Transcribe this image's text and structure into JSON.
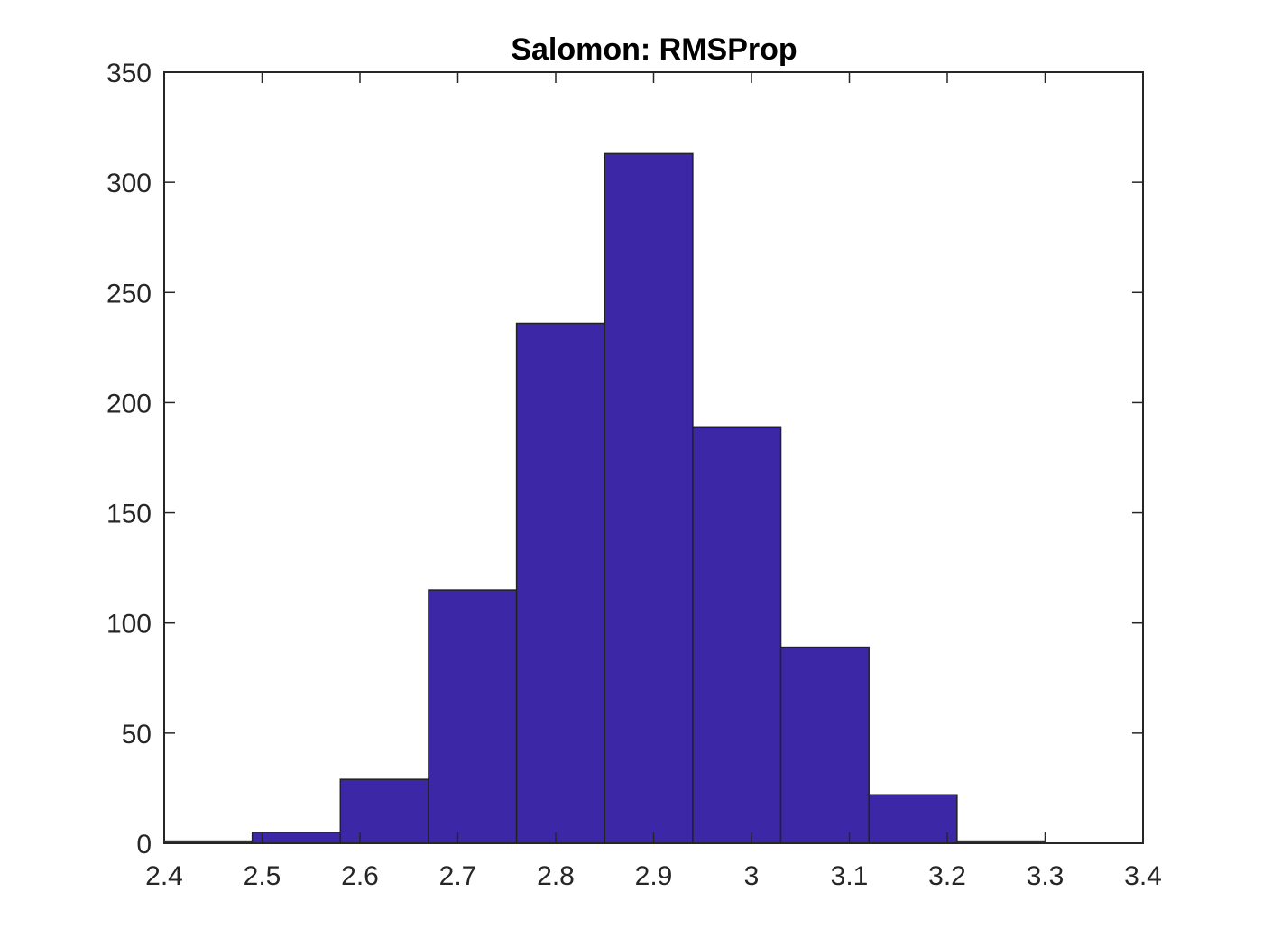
{
  "chart_data": {
    "type": "bar",
    "subtype": "histogram",
    "title": "Salomon: RMSProp",
    "xlabel": "",
    "ylabel": "",
    "xlim": [
      2.4,
      3.4
    ],
    "ylim": [
      0,
      350
    ],
    "x_ticks": [
      2.4,
      2.5,
      2.6,
      2.7,
      2.8,
      2.9,
      3.0,
      3.1,
      3.2,
      3.3,
      3.4
    ],
    "x_tick_labels": [
      "2.4",
      "2.5",
      "2.6",
      "2.7",
      "2.8",
      "2.9",
      "3",
      "3.1",
      "3.2",
      "3.3",
      "3.4"
    ],
    "y_ticks": [
      0,
      50,
      100,
      150,
      200,
      250,
      300,
      350
    ],
    "y_tick_labels": [
      "0",
      "50",
      "100",
      "150",
      "200",
      "250",
      "300",
      "350"
    ],
    "bin_edges": [
      2.4,
      2.49,
      2.58,
      2.67,
      2.76,
      2.85,
      2.94,
      3.03,
      3.12,
      3.21,
      3.3
    ],
    "values": [
      1,
      5,
      29,
      115,
      236,
      313,
      189,
      89,
      22,
      1
    ],
    "bar_color": "#3c28a6",
    "edge_color": "#222222",
    "grid": false
  }
}
